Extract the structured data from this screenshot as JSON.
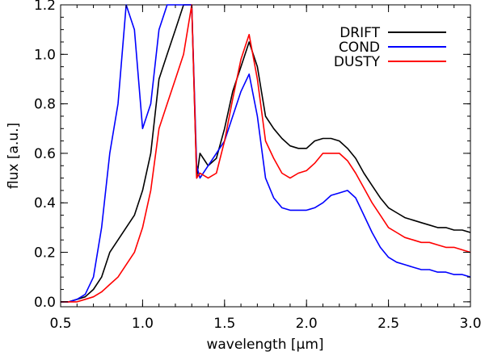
{
  "chart_data": {
    "type": "line",
    "title": "",
    "xlabel": "wavelength [μm]",
    "ylabel": "flux [a.u.]",
    "xlim": [
      0.5,
      3.0
    ],
    "ylim": [
      -0.02,
      1.2
    ],
    "xticks": [
      0.5,
      1.0,
      1.5,
      2.0,
      2.5,
      3.0
    ],
    "xtick_labels": [
      "0.5",
      "1.0",
      "1.5",
      "2.0",
      "2.5",
      "3.0"
    ],
    "yticks": [
      0.0,
      0.2,
      0.4,
      0.6,
      0.8,
      1.0,
      1.2
    ],
    "ytick_labels": [
      "0.0",
      "0.2",
      "0.4",
      "0.6",
      "0.8",
      "1.0",
      "1.2"
    ],
    "grid": false,
    "legend_position": "top-right",
    "series": [
      {
        "name": "DRIFT",
        "color": "#000000",
        "x": [
          0.5,
          0.55,
          0.6,
          0.65,
          0.7,
          0.75,
          0.8,
          0.85,
          0.9,
          0.95,
          1.0,
          1.05,
          1.1,
          1.15,
          1.2,
          1.25,
          1.3,
          1.33,
          1.35,
          1.4,
          1.45,
          1.5,
          1.55,
          1.6,
          1.65,
          1.7,
          1.75,
          1.8,
          1.85,
          1.9,
          1.95,
          2.0,
          2.05,
          2.1,
          2.15,
          2.2,
          2.25,
          2.3,
          2.35,
          2.4,
          2.45,
          2.5,
          2.55,
          2.6,
          2.65,
          2.7,
          2.75,
          2.8,
          2.85,
          2.9,
          2.95,
          3.0
        ],
        "y": [
          0.0,
          0.0,
          0.01,
          0.02,
          0.05,
          0.1,
          0.2,
          0.25,
          0.3,
          0.35,
          0.45,
          0.6,
          0.9,
          1.0,
          1.1,
          1.2,
          1.25,
          0.5,
          0.6,
          0.55,
          0.58,
          0.7,
          0.85,
          0.95,
          1.05,
          0.95,
          0.75,
          0.7,
          0.66,
          0.63,
          0.62,
          0.62,
          0.65,
          0.66,
          0.66,
          0.65,
          0.62,
          0.58,
          0.52,
          0.47,
          0.42,
          0.38,
          0.36,
          0.34,
          0.33,
          0.32,
          0.31,
          0.3,
          0.3,
          0.29,
          0.29,
          0.28
        ]
      },
      {
        "name": "COND",
        "color": "#0000ff",
        "x": [
          0.5,
          0.55,
          0.6,
          0.65,
          0.7,
          0.75,
          0.8,
          0.85,
          0.9,
          0.95,
          1.0,
          1.05,
          1.1,
          1.15,
          1.2,
          1.25,
          1.3,
          1.33,
          1.35,
          1.4,
          1.45,
          1.5,
          1.55,
          1.6,
          1.65,
          1.7,
          1.75,
          1.8,
          1.85,
          1.9,
          1.95,
          2.0,
          2.05,
          2.1,
          2.15,
          2.2,
          2.25,
          2.3,
          2.35,
          2.4,
          2.45,
          2.5,
          2.55,
          2.6,
          2.65,
          2.7,
          2.75,
          2.8,
          2.85,
          2.9,
          2.95,
          3.0
        ],
        "y": [
          0.0,
          0.0,
          0.01,
          0.03,
          0.1,
          0.3,
          0.6,
          0.8,
          1.2,
          1.1,
          0.7,
          0.8,
          1.1,
          1.2,
          1.25,
          1.2,
          1.25,
          0.55,
          0.5,
          0.55,
          0.6,
          0.65,
          0.75,
          0.85,
          0.92,
          0.75,
          0.5,
          0.42,
          0.38,
          0.37,
          0.37,
          0.37,
          0.38,
          0.4,
          0.43,
          0.44,
          0.45,
          0.42,
          0.35,
          0.28,
          0.22,
          0.18,
          0.16,
          0.15,
          0.14,
          0.13,
          0.13,
          0.12,
          0.12,
          0.11,
          0.11,
          0.1
        ]
      },
      {
        "name": "DUSTY",
        "color": "#ff0000",
        "x": [
          0.5,
          0.55,
          0.6,
          0.65,
          0.7,
          0.75,
          0.8,
          0.85,
          0.9,
          0.95,
          1.0,
          1.05,
          1.1,
          1.15,
          1.2,
          1.25,
          1.3,
          1.33,
          1.35,
          1.4,
          1.45,
          1.5,
          1.55,
          1.6,
          1.65,
          1.7,
          1.75,
          1.8,
          1.85,
          1.9,
          1.95,
          2.0,
          2.05,
          2.1,
          2.15,
          2.2,
          2.25,
          2.3,
          2.35,
          2.4,
          2.45,
          2.5,
          2.55,
          2.6,
          2.65,
          2.7,
          2.75,
          2.8,
          2.85,
          2.9,
          2.95,
          3.0
        ],
        "y": [
          0.0,
          0.0,
          0.0,
          0.01,
          0.02,
          0.04,
          0.07,
          0.1,
          0.15,
          0.2,
          0.3,
          0.45,
          0.7,
          0.8,
          0.9,
          1.0,
          1.2,
          0.5,
          0.52,
          0.5,
          0.52,
          0.65,
          0.82,
          0.98,
          1.08,
          0.9,
          0.65,
          0.58,
          0.52,
          0.5,
          0.52,
          0.53,
          0.56,
          0.6,
          0.6,
          0.6,
          0.57,
          0.52,
          0.46,
          0.4,
          0.35,
          0.3,
          0.28,
          0.26,
          0.25,
          0.24,
          0.24,
          0.23,
          0.22,
          0.22,
          0.21,
          0.2
        ]
      }
    ]
  }
}
